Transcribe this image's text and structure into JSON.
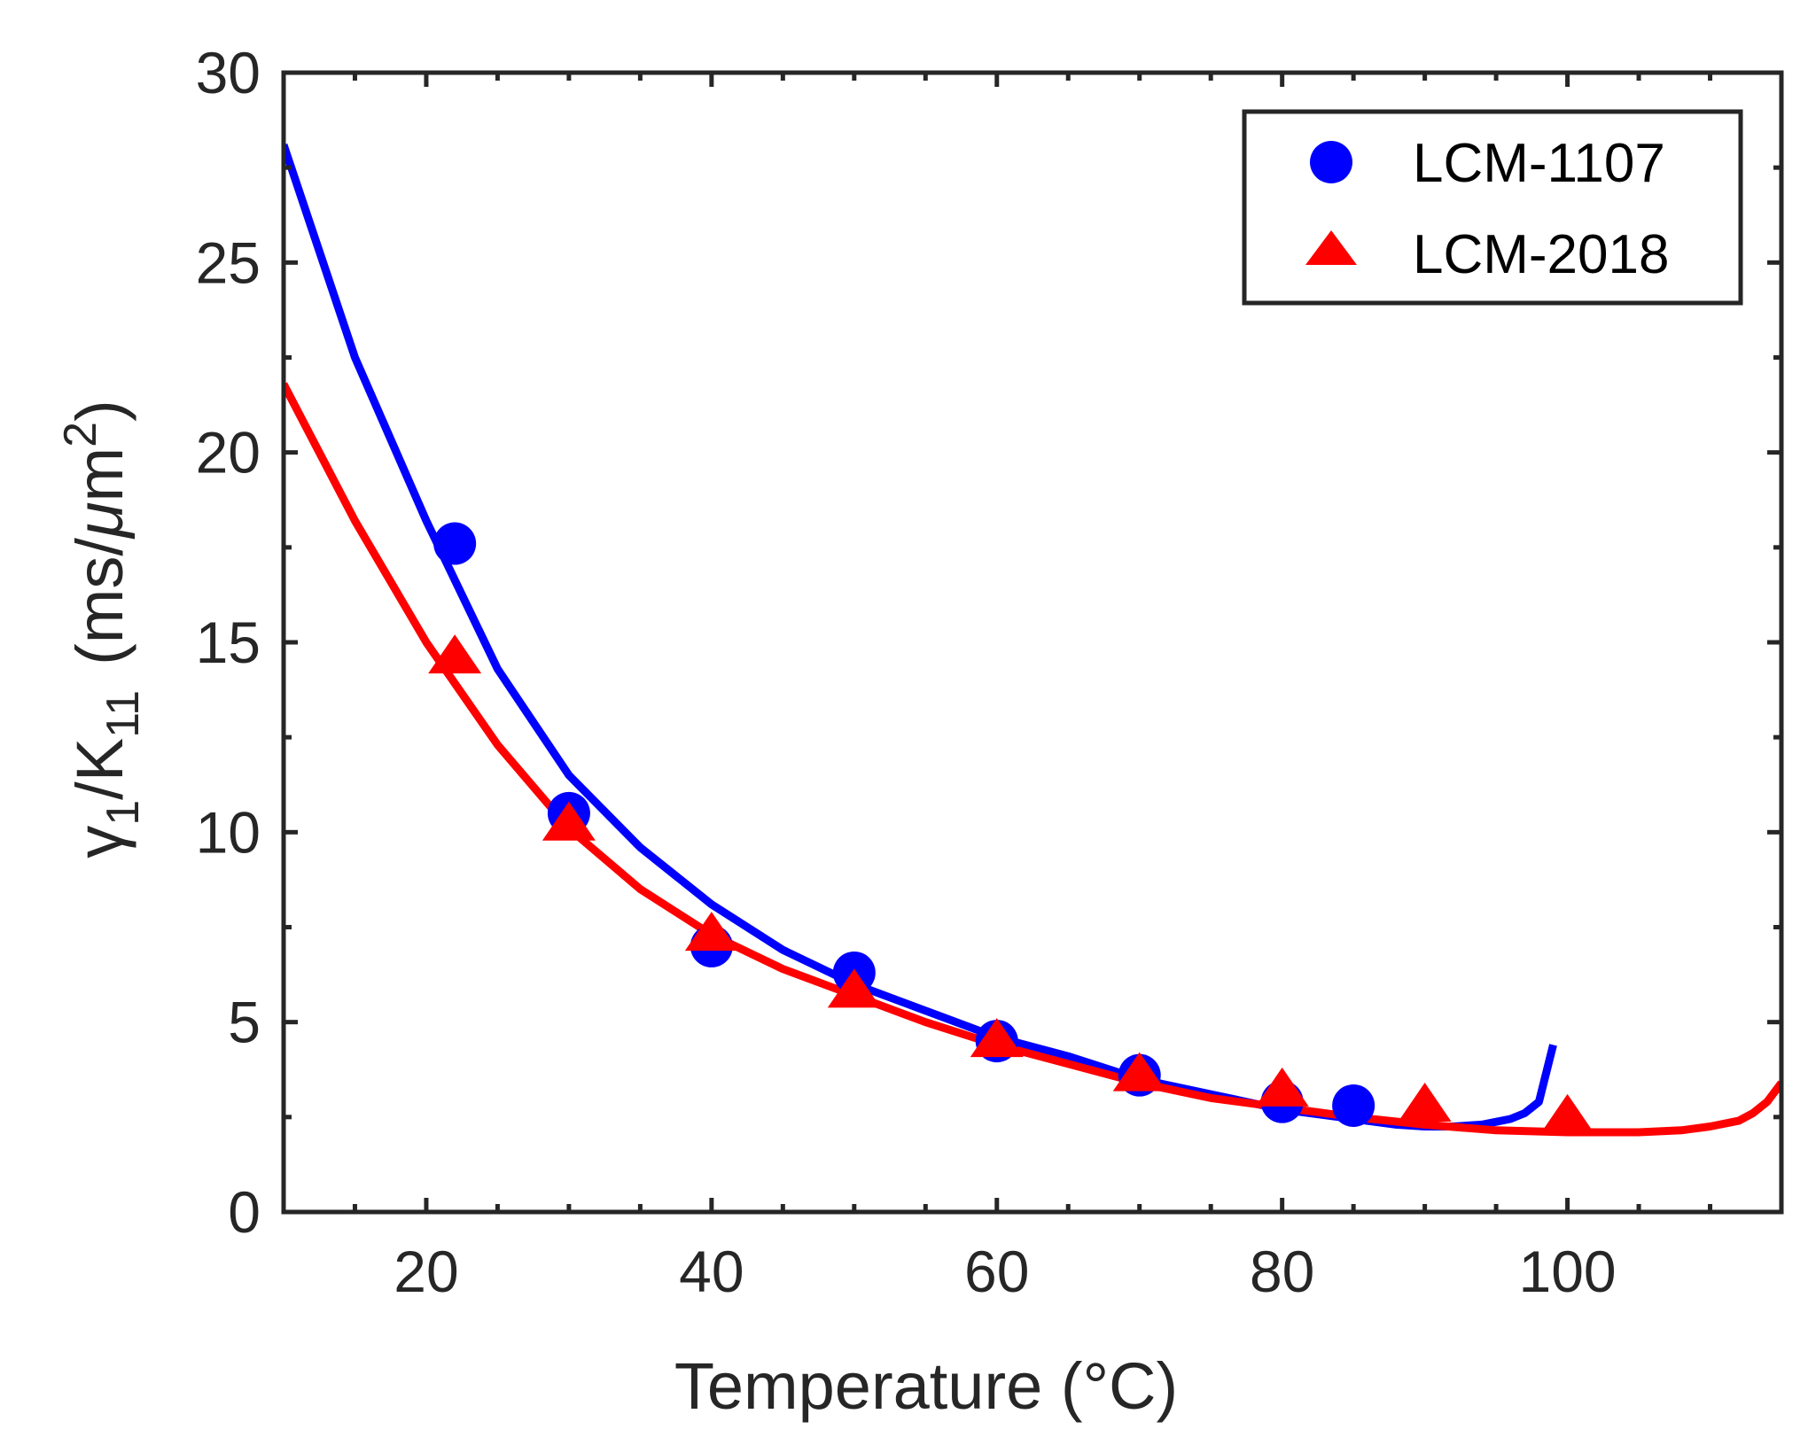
{
  "chart_data": {
    "type": "scatter",
    "title": "",
    "xlabel": "Temperature (°C)",
    "ylabel_parts": {
      "gamma": "γ",
      "gamma_sub": "1",
      "slash_k": "/K",
      "k_sub": "11",
      "units_open": "(ms/",
      "mu": "μ",
      "units_m": "m",
      "units_sup": "2",
      "units_close": ")"
    },
    "xlim": [
      10,
      115
    ],
    "ylim": [
      0,
      30
    ],
    "xticks": [
      20,
      40,
      60,
      80,
      100
    ],
    "yticks": [
      0,
      5,
      10,
      15,
      20,
      25,
      30
    ],
    "xtick_labels": [
      "20",
      "40",
      "60",
      "80",
      "100"
    ],
    "ytick_labels": [
      "0",
      "5",
      "10",
      "15",
      "20",
      "25",
      "30"
    ],
    "legend_position": "top-right",
    "series": [
      {
        "name": "LCM-1107",
        "marker": "circle",
        "color": "#0000ff",
        "x": [
          22,
          30,
          40,
          50,
          60,
          70,
          80,
          85
        ],
        "y": [
          17.6,
          10.5,
          7.0,
          6.3,
          4.5,
          3.6,
          2.9,
          2.8
        ]
      },
      {
        "name": "LCM-2018",
        "marker": "triangle",
        "color": "#ff0000",
        "x": [
          22,
          30,
          40,
          50,
          60,
          70,
          80,
          90,
          100
        ],
        "y": [
          14.6,
          10.2,
          7.3,
          5.8,
          4.5,
          3.6,
          3.2,
          2.8,
          2.5
        ]
      }
    ],
    "fit_curves": [
      {
        "name": "LCM-1107 fit",
        "color": "#0000ff",
        "x": [
          10,
          15,
          20,
          25,
          30,
          35,
          40,
          45,
          50,
          55,
          60,
          65,
          70,
          75,
          80,
          85,
          88,
          90,
          92,
          94,
          96,
          97,
          98,
          99
        ],
        "y": [
          28.1,
          22.5,
          18.2,
          14.3,
          11.5,
          9.6,
          8.1,
          6.9,
          6.0,
          5.3,
          4.6,
          4.1,
          3.5,
          3.1,
          2.7,
          2.45,
          2.3,
          2.25,
          2.25,
          2.3,
          2.45,
          2.6,
          2.9,
          4.4
        ]
      },
      {
        "name": "LCM-2018 fit",
        "color": "#ff0000",
        "x": [
          10,
          15,
          20,
          25,
          30,
          35,
          40,
          45,
          50,
          55,
          60,
          65,
          70,
          75,
          80,
          85,
          90,
          95,
          100,
          105,
          108,
          110,
          112,
          113,
          114,
          115
        ],
        "y": [
          21.8,
          18.2,
          15.0,
          12.3,
          10.1,
          8.5,
          7.3,
          6.4,
          5.7,
          5.0,
          4.4,
          3.9,
          3.4,
          3.0,
          2.75,
          2.5,
          2.3,
          2.15,
          2.1,
          2.1,
          2.15,
          2.25,
          2.4,
          2.6,
          2.9,
          3.4
        ]
      }
    ]
  }
}
